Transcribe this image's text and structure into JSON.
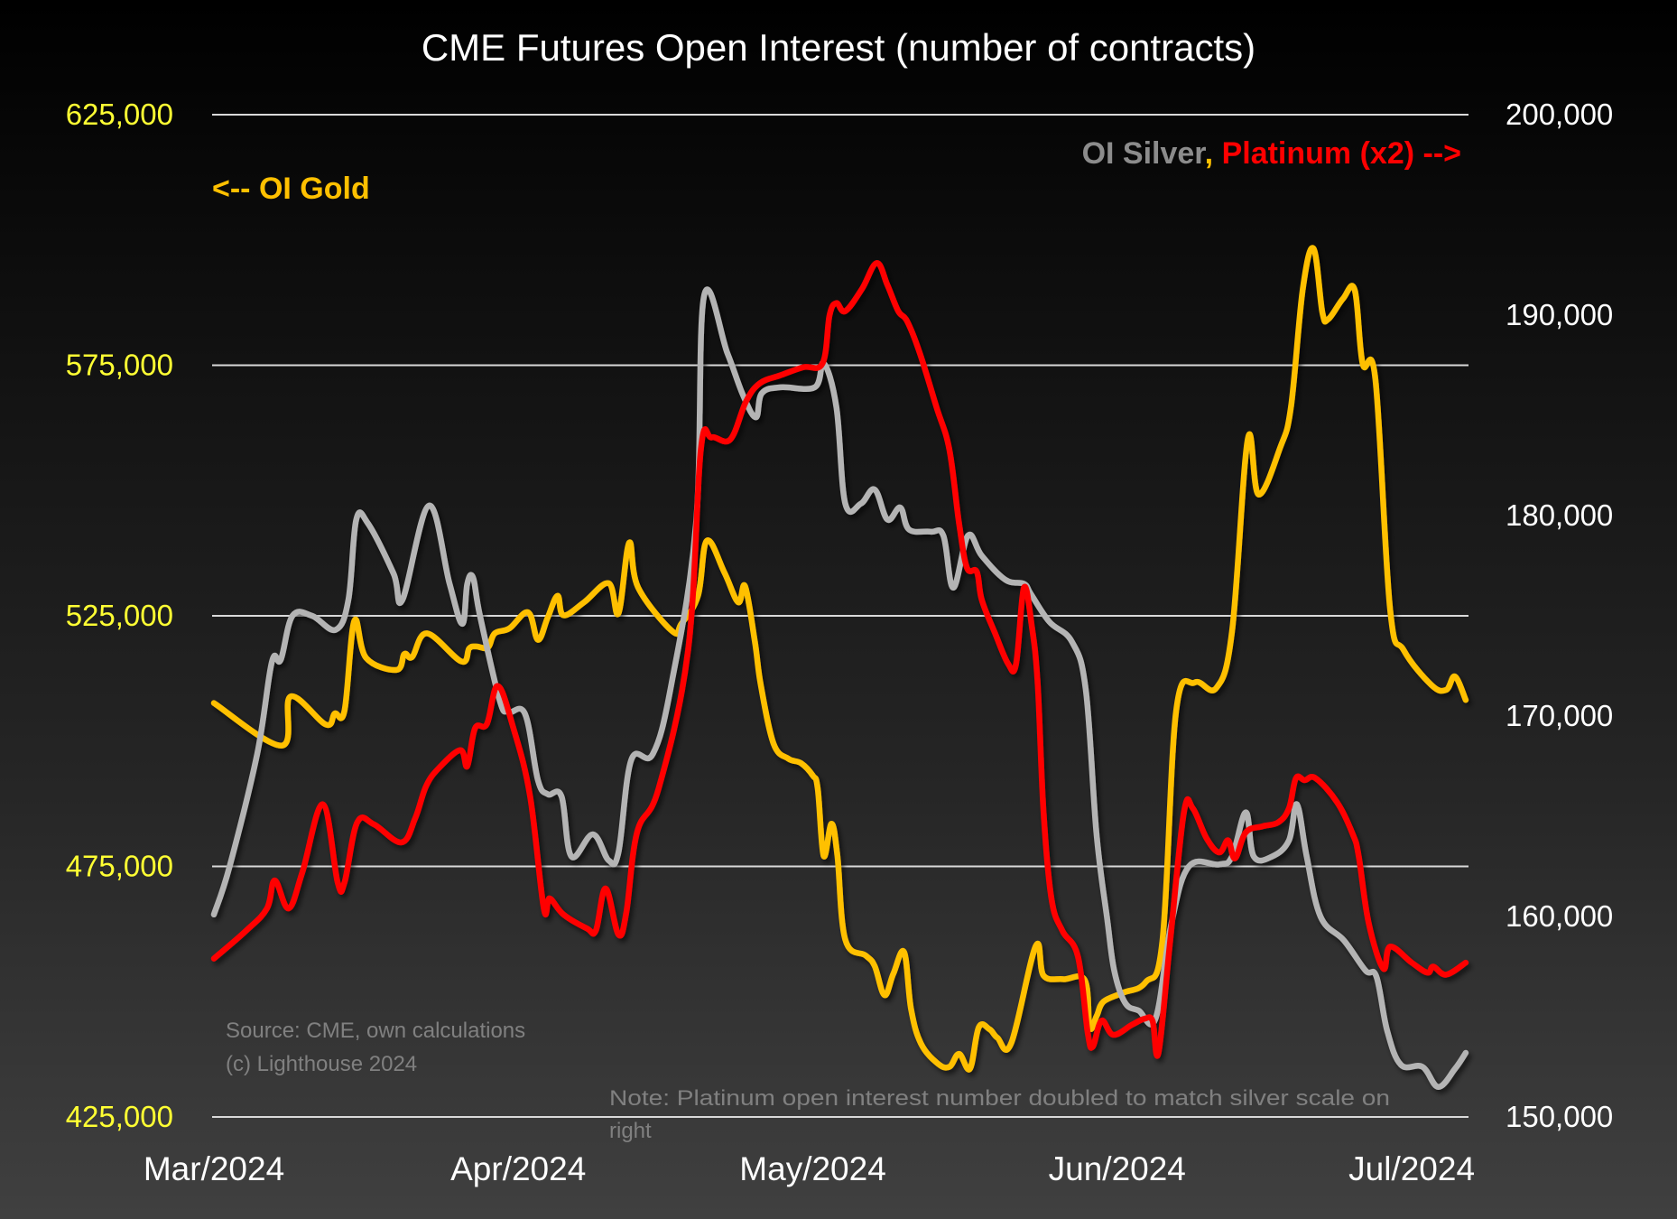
{
  "chart_data": {
    "type": "line",
    "title": "CME Futures Open Interest (number of contracts)",
    "x_start_date": "2024-03-01",
    "x_unit": "days since x_start_date",
    "xlim": [
      0,
      128
    ],
    "x_ticks": [
      {
        "day": 0,
        "label": "Mar/2024"
      },
      {
        "day": 31,
        "label": "Apr/2024"
      },
      {
        "day": 61,
        "label": "May/2024"
      },
      {
        "day": 92,
        "label": "Jun/2024"
      },
      {
        "day": 122,
        "label": "Jul/2024"
      }
    ],
    "y_left": {
      "ylim": [
        425000,
        625000
      ],
      "ticks": [
        625000,
        575000,
        525000,
        475000,
        425000
      ],
      "tick_labels": [
        "625,000",
        "575,000",
        "525,000",
        "475,000",
        "425,000"
      ],
      "color": "#ffff33"
    },
    "y_right": {
      "ylim": [
        150000,
        200000
      ],
      "ticks": [
        200000,
        190000,
        180000,
        170000,
        160000,
        150000
      ],
      "tick_labels": [
        "200,000",
        "190,000",
        "180,000",
        "170,000",
        "160,000",
        "150,000"
      ],
      "color": "#ffffff"
    },
    "grid": true,
    "legend": {
      "left": {
        "text": "<-- OI Gold",
        "color": "#ffc000"
      },
      "right": [
        {
          "text": "OI Silver",
          "color": "#8c8c8c"
        },
        {
          "text": ",",
          "color": "#ffc000"
        },
        {
          "text": " Platinum (x2) -->",
          "color": "#ff0000"
        }
      ]
    },
    "series": [
      {
        "name": "OI Gold",
        "axis": "left",
        "color": "#ffc000",
        "points": [
          [
            0,
            507600
          ],
          [
            6.9,
            499100
          ],
          [
            7.8,
            508900
          ],
          [
            11.4,
            503300
          ],
          [
            12.3,
            505500
          ],
          [
            13.3,
            506100
          ],
          [
            14.3,
            524000
          ],
          [
            15.5,
            516600
          ],
          [
            18.6,
            514200
          ],
          [
            19.4,
            517400
          ],
          [
            20.2,
            516800
          ],
          [
            21.7,
            521500
          ],
          [
            25.2,
            515900
          ],
          [
            26.0,
            518500
          ],
          [
            26.7,
            518900
          ],
          [
            27.9,
            518700
          ],
          [
            28.6,
            521500
          ],
          [
            30.1,
            522500
          ],
          [
            32.0,
            525700
          ],
          [
            33.0,
            520200
          ],
          [
            34.0,
            524700
          ],
          [
            35.0,
            529000
          ],
          [
            35.6,
            525100
          ],
          [
            37.7,
            527700
          ],
          [
            40.2,
            531500
          ],
          [
            41.2,
            525500
          ],
          [
            42.3,
            539600
          ],
          [
            43.2,
            530700
          ],
          [
            46.7,
            521900
          ],
          [
            47.6,
            523400
          ],
          [
            49.3,
            529000
          ],
          [
            50.2,
            540000
          ],
          [
            52.0,
            533600
          ],
          [
            53.4,
            527700
          ],
          [
            54.1,
            530900
          ],
          [
            55.1,
            519800
          ],
          [
            55.7,
            511200
          ],
          [
            57.0,
            499500
          ],
          [
            58.5,
            496500
          ],
          [
            59.8,
            495600
          ],
          [
            61.0,
            493100
          ],
          [
            61.5,
            490500
          ],
          [
            62.1,
            477100
          ],
          [
            62.9,
            483500
          ],
          [
            63.5,
            477100
          ],
          [
            64.3,
            460400
          ],
          [
            66.4,
            457200
          ],
          [
            67.3,
            455100
          ],
          [
            68.3,
            449300
          ],
          [
            69.2,
            453600
          ],
          [
            70.3,
            457900
          ],
          [
            71.0,
            446600
          ],
          [
            72.0,
            439700
          ],
          [
            73.7,
            435700
          ],
          [
            74.9,
            435000
          ],
          [
            75.9,
            437600
          ],
          [
            77.0,
            434600
          ],
          [
            77.9,
            442900
          ],
          [
            79.0,
            442500
          ],
          [
            79.8,
            440800
          ],
          [
            81.2,
            439700
          ],
          [
            83.7,
            459100
          ],
          [
            84.5,
            453200
          ],
          [
            86.5,
            452500
          ],
          [
            88.7,
            452300
          ],
          [
            89.2,
            442900
          ],
          [
            89.9,
            445100
          ],
          [
            90.6,
            448000
          ],
          [
            92.6,
            449800
          ],
          [
            94.9,
            451900
          ],
          [
            96.6,
            460000
          ],
          [
            98.0,
            505900
          ],
          [
            99.9,
            511700
          ],
          [
            102.1,
            510600
          ],
          [
            103.7,
            521900
          ],
          [
            105.3,
            560300
          ],
          [
            106.4,
            549200
          ],
          [
            108.6,
            558600
          ],
          [
            109.7,
            566700
          ],
          [
            110.9,
            590200
          ],
          [
            112.0,
            598300
          ],
          [
            112.9,
            585500
          ],
          [
            113.5,
            584200
          ],
          [
            115.0,
            588300
          ],
          [
            116.2,
            590000
          ],
          [
            117.0,
            575300
          ],
          [
            118.3,
            572100
          ],
          [
            119.8,
            526200
          ],
          [
            121.2,
            518100
          ],
          [
            124.0,
            511200
          ],
          [
            125.5,
            510200
          ],
          [
            126.4,
            512900
          ],
          [
            127.5,
            508200
          ]
        ]
      },
      {
        "name": "OI Silver",
        "axis": "right",
        "color": "#b4b4b4",
        "points": [
          [
            0,
            160100
          ],
          [
            1.6,
            162500
          ],
          [
            4.4,
            168100
          ],
          [
            5.9,
            172700
          ],
          [
            6.8,
            172800
          ],
          [
            8.0,
            175000
          ],
          [
            10.0,
            175000
          ],
          [
            12.4,
            174300
          ],
          [
            13.7,
            175800
          ],
          [
            14.5,
            179800
          ],
          [
            15.7,
            179600
          ],
          [
            18.3,
            177100
          ],
          [
            19.2,
            175800
          ],
          [
            21.9,
            180500
          ],
          [
            24.0,
            176600
          ],
          [
            25.3,
            174600
          ],
          [
            25.8,
            176600
          ],
          [
            26.4,
            176900
          ],
          [
            27.1,
            175000
          ],
          [
            29.1,
            170800
          ],
          [
            30.0,
            170200
          ],
          [
            31.7,
            170100
          ],
          [
            33.0,
            166800
          ],
          [
            34.0,
            166100
          ],
          [
            35.4,
            166000
          ],
          [
            36.4,
            163000
          ],
          [
            38.6,
            164100
          ],
          [
            40.2,
            162800
          ],
          [
            41.2,
            163200
          ],
          [
            42.5,
            167800
          ],
          [
            44.7,
            168100
          ],
          [
            46.6,
            171600
          ],
          [
            49.1,
            179600
          ],
          [
            49.9,
            190900
          ],
          [
            52.3,
            188100
          ],
          [
            53.9,
            186000
          ],
          [
            55.2,
            184900
          ],
          [
            55.8,
            186100
          ],
          [
            57.7,
            186400
          ],
          [
            61.2,
            186400
          ],
          [
            62.1,
            187600
          ],
          [
            63.4,
            185400
          ],
          [
            64.3,
            180600
          ],
          [
            65.9,
            180600
          ],
          [
            67.3,
            181300
          ],
          [
            68.6,
            179800
          ],
          [
            69.9,
            180400
          ],
          [
            70.8,
            179300
          ],
          [
            73.0,
            179200
          ],
          [
            74.3,
            179000
          ],
          [
            75.3,
            176400
          ],
          [
            76.8,
            179000
          ],
          [
            78.2,
            178000
          ],
          [
            80.6,
            176800
          ],
          [
            82.5,
            176600
          ],
          [
            83.2,
            176100
          ],
          [
            85.1,
            174700
          ],
          [
            87.4,
            173700
          ],
          [
            88.8,
            171300
          ],
          [
            89.9,
            164100
          ],
          [
            91.0,
            159800
          ],
          [
            91.7,
            157300
          ],
          [
            92.8,
            155700
          ],
          [
            94.2,
            155300
          ],
          [
            95.9,
            154900
          ],
          [
            97.5,
            159600
          ],
          [
            99.3,
            162500
          ],
          [
            102.4,
            162600
          ],
          [
            103.7,
            163000
          ],
          [
            105.1,
            165200
          ],
          [
            105.9,
            163000
          ],
          [
            107.8,
            163000
          ],
          [
            109.5,
            163800
          ],
          [
            110.3,
            165600
          ],
          [
            111.3,
            163000
          ],
          [
            112.7,
            160000
          ],
          [
            115.1,
            158800
          ],
          [
            117.3,
            157300
          ],
          [
            118.4,
            157000
          ],
          [
            119.5,
            154300
          ],
          [
            120.9,
            152600
          ],
          [
            123.1,
            152500
          ],
          [
            124.7,
            151500
          ],
          [
            126.4,
            152400
          ],
          [
            127.5,
            153200
          ]
        ]
      },
      {
        "name": "Platinum (x2)",
        "axis": "right",
        "color": "#ff0000",
        "points": [
          [
            0,
            157900
          ],
          [
            3.3,
            159300
          ],
          [
            5.4,
            160400
          ],
          [
            6.2,
            161800
          ],
          [
            7.6,
            160400
          ],
          [
            9.0,
            162200
          ],
          [
            11.1,
            165600
          ],
          [
            12.6,
            161700
          ],
          [
            13.3,
            161700
          ],
          [
            14.6,
            164700
          ],
          [
            16.3,
            164600
          ],
          [
            19.1,
            163700
          ],
          [
            20.5,
            164900
          ],
          [
            21.6,
            166500
          ],
          [
            22.9,
            167400
          ],
          [
            25.1,
            168300
          ],
          [
            25.8,
            167500
          ],
          [
            26.6,
            169400
          ],
          [
            27.8,
            169600
          ],
          [
            28.9,
            171500
          ],
          [
            30.5,
            169400
          ],
          [
            32.2,
            166000
          ],
          [
            33.6,
            160400
          ],
          [
            34.2,
            160900
          ],
          [
            35.6,
            160100
          ],
          [
            38.0,
            159400
          ],
          [
            38.9,
            159300
          ],
          [
            39.9,
            161400
          ],
          [
            41.2,
            159100
          ],
          [
            42.0,
            160200
          ],
          [
            43.1,
            164200
          ],
          [
            45.3,
            166400
          ],
          [
            48.3,
            173300
          ],
          [
            49.6,
            183300
          ],
          [
            50.7,
            183900
          ],
          [
            52.6,
            183800
          ],
          [
            54.2,
            185700
          ],
          [
            55.6,
            186600
          ],
          [
            57.7,
            187000
          ],
          [
            60.0,
            187400
          ],
          [
            62.0,
            187600
          ],
          [
            62.7,
            190000
          ],
          [
            63.4,
            190600
          ],
          [
            64.3,
            190200
          ],
          [
            66.0,
            191300
          ],
          [
            67.5,
            192600
          ],
          [
            68.6,
            191500
          ],
          [
            69.7,
            190200
          ],
          [
            70.6,
            189700
          ],
          [
            71.9,
            188100
          ],
          [
            73.6,
            185400
          ],
          [
            74.9,
            183300
          ],
          [
            75.9,
            179600
          ],
          [
            76.7,
            177400
          ],
          [
            77.7,
            177200
          ],
          [
            78.2,
            175800
          ],
          [
            79.5,
            174200
          ],
          [
            80.9,
            172600
          ],
          [
            81.7,
            172600
          ],
          [
            82.5,
            176400
          ],
          [
            83.3,
            174500
          ],
          [
            83.9,
            171600
          ],
          [
            84.5,
            165200
          ],
          [
            85.3,
            160900
          ],
          [
            86.4,
            159300
          ],
          [
            88.0,
            158000
          ],
          [
            89.0,
            154200
          ],
          [
            89.5,
            153500
          ],
          [
            90.4,
            154800
          ],
          [
            91.6,
            154100
          ],
          [
            93.5,
            154600
          ],
          [
            94.8,
            154900
          ],
          [
            95.6,
            154800
          ],
          [
            96.2,
            153200
          ],
          [
            97.4,
            158800
          ],
          [
            98.8,
            165200
          ],
          [
            99.7,
            165400
          ],
          [
            101.1,
            163900
          ],
          [
            102.4,
            163200
          ],
          [
            103.3,
            163800
          ],
          [
            104.0,
            162900
          ],
          [
            105.1,
            164200
          ],
          [
            106.8,
            164500
          ],
          [
            108.4,
            164700
          ],
          [
            109.5,
            165400
          ],
          [
            110.2,
            166900
          ],
          [
            111.1,
            166800
          ],
          [
            112.2,
            166900
          ],
          [
            114.4,
            165700
          ],
          [
            116.0,
            164100
          ],
          [
            116.6,
            163000
          ],
          [
            117.6,
            159700
          ],
          [
            119.1,
            157400
          ],
          [
            119.8,
            158500
          ],
          [
            122.0,
            157700
          ],
          [
            123.6,
            157200
          ],
          [
            124.2,
            157500
          ],
          [
            125.5,
            157100
          ],
          [
            127.5,
            157700
          ]
        ]
      }
    ],
    "annotations": {
      "source_line1": "Source: CME, own calculations",
      "source_line2": "(c) Lighthouse 2024",
      "note_line1": "Note: Platinum open interest number doubled to match silver scale on",
      "note_line2": "right"
    }
  }
}
